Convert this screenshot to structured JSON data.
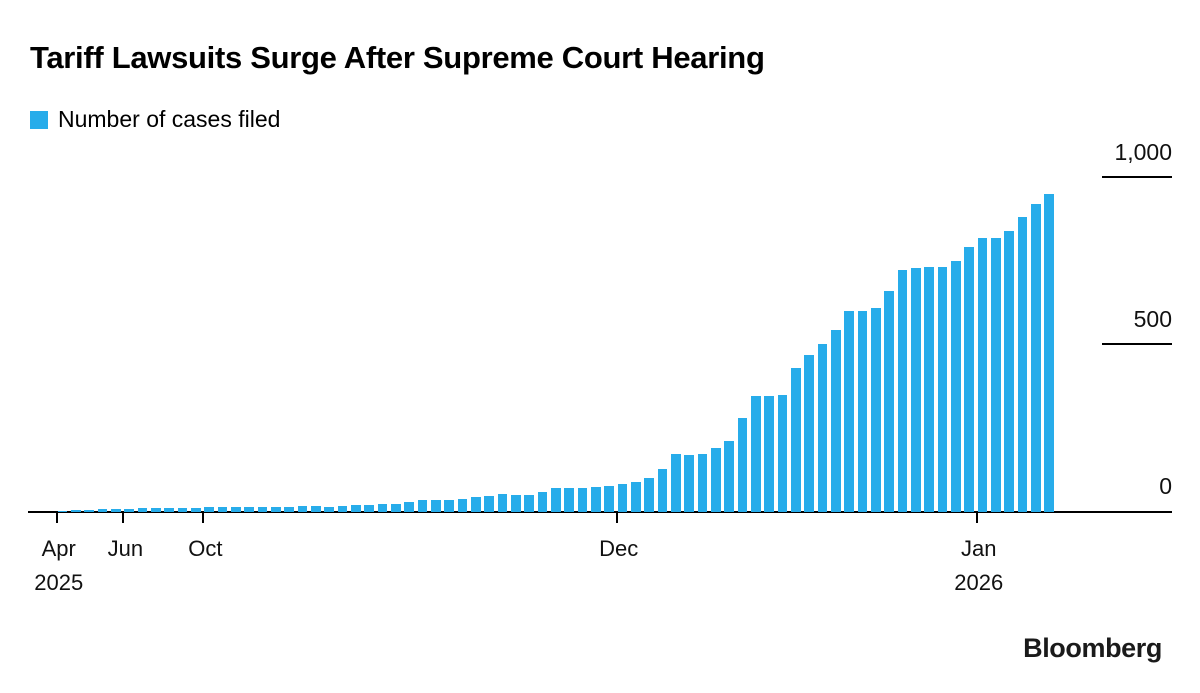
{
  "title": "Tariff Lawsuits Surge After Supreme Court Hearing",
  "legend": {
    "label": "Number of cases filed"
  },
  "branding": "Bloomberg",
  "chart_data": {
    "type": "bar",
    "title": "Tariff Lawsuits Surge After Supreme Court Hearing",
    "series_name": "Number of cases filed",
    "bar_color": "#27ACEA",
    "grid": false,
    "legend_position": "top-left",
    "y_axis_side": "right",
    "ylim": [
      0,
      1000
    ],
    "y_ticks": [
      {
        "value": 0,
        "label": "0",
        "line": false
      },
      {
        "value": 500,
        "label": "500",
        "line": true
      },
      {
        "value": 1000,
        "label": "1,000",
        "line": true
      }
    ],
    "x_ticks": [
      {
        "index": 0,
        "label": "Apr",
        "sublabel": "2025"
      },
      {
        "index": 5,
        "label": "Jun"
      },
      {
        "index": 11,
        "label": "Oct"
      },
      {
        "index": 42,
        "label": "Dec"
      },
      {
        "index": 69,
        "label": "Jan",
        "sublabel": "2026"
      }
    ],
    "x_unit": "filing date (Apr 2025 - Jan 2026)",
    "values": [
      3,
      5,
      7,
      8,
      9,
      10,
      11,
      12,
      12,
      13,
      13,
      14,
      14,
      15,
      15,
      15,
      15,
      16,
      17,
      17,
      16,
      19,
      21,
      21,
      23,
      25,
      29,
      35,
      35,
      37,
      39,
      44,
      48,
      54,
      52,
      50,
      60,
      73,
      73,
      72,
      75,
      77,
      83,
      90,
      102,
      128,
      172,
      170,
      172,
      192,
      212,
      282,
      348,
      348,
      350,
      429,
      468,
      501,
      544,
      600,
      601,
      611,
      661,
      724,
      729,
      732,
      732,
      750,
      792,
      820,
      820,
      840,
      882,
      920,
      950
    ]
  }
}
